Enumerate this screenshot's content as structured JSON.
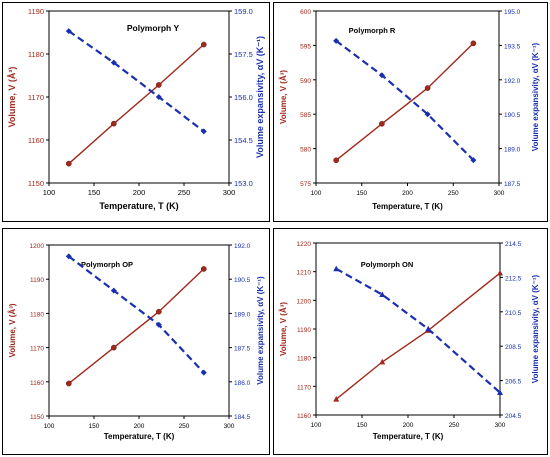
{
  "chart_data": [
    {
      "type": "line",
      "title": "Polymorph Y",
      "xlabel": "Temperature, T (K)",
      "ylabel": "Volume, V (Å³)",
      "y2label": "Volume expansivity, αV (K⁻¹)",
      "xlim": [
        100,
        300
      ],
      "ylim": [
        1150,
        1190
      ],
      "y2lim": [
        153.0,
        159.0
      ],
      "x_ticks": [
        "100",
        "150",
        "200",
        "250",
        "300"
      ],
      "y_ticks": [
        "1150",
        "1160",
        "1170",
        "1180",
        "1190"
      ],
      "y2_ticks": [
        "153.0",
        "154.5",
        "156.0",
        "157.5",
        "159.0"
      ],
      "series": [
        {
          "axis": "left",
          "color": "#a0281c",
          "style": "solid",
          "marker": "circle",
          "x": [
            122,
            172,
            222,
            272
          ],
          "y": [
            1154.5,
            1163.8,
            1172.8,
            1182.2
          ]
        },
        {
          "axis": "right",
          "color": "#1a2fb0",
          "style": "dashed",
          "marker": "diamond",
          "x": [
            122,
            172,
            222,
            272
          ],
          "y": [
            158.3,
            157.2,
            156.0,
            154.8
          ]
        }
      ]
    },
    {
      "type": "line",
      "title": "Polymorph R",
      "xlabel": "Temperature, T (K)",
      "ylabel": "Volume, V (Å³)",
      "y2label": "Volume expansivity, αV (K⁻¹)",
      "xlim": [
        100,
        300
      ],
      "ylim": [
        575,
        600
      ],
      "y2lim": [
        187.5,
        195.0
      ],
      "x_ticks": [
        "100",
        "150",
        "200",
        "250",
        "300"
      ],
      "y_ticks": [
        "575",
        "580",
        "585",
        "590",
        "595",
        "600"
      ],
      "y2_ticks": [
        "187.5",
        "189.0",
        "190.5",
        "192.0",
        "193.5",
        "195.0"
      ],
      "series": [
        {
          "axis": "left",
          "color": "#a0281c",
          "style": "solid",
          "marker": "circle",
          "x": [
            122,
            172,
            222,
            272
          ],
          "y": [
            578.3,
            583.6,
            588.8,
            595.3
          ]
        },
        {
          "axis": "right",
          "color": "#1a2fb0",
          "style": "dashed",
          "marker": "diamond",
          "x": [
            122,
            172,
            222,
            272
          ],
          "y": [
            193.7,
            192.2,
            190.5,
            188.5
          ]
        }
      ]
    },
    {
      "type": "line",
      "title": "Polymorph OP",
      "xlabel": "Temperature, T (K)",
      "ylabel": "Volume, V (Å³)",
      "y2label": "Volume expansivity, αV (K⁻¹)",
      "xlim": [
        100,
        300
      ],
      "ylim": [
        1150,
        1200
      ],
      "y2lim": [
        184.5,
        192.0
      ],
      "x_ticks": [
        "100",
        "150",
        "200",
        "250",
        "300"
      ],
      "y_ticks": [
        "1150",
        "1160",
        "1170",
        "1180",
        "1190",
        "1200"
      ],
      "y2_ticks": [
        "184.5",
        "186.0",
        "187.5",
        "189.0",
        "190.5",
        "192.0"
      ],
      "series": [
        {
          "axis": "left",
          "color": "#a0281c",
          "style": "solid",
          "marker": "circle",
          "x": [
            122,
            172,
            222,
            272
          ],
          "y": [
            1159.5,
            1170.0,
            1180.5,
            1193.0
          ]
        },
        {
          "axis": "right",
          "color": "#1a2fb0",
          "style": "dashed",
          "marker": "diamond",
          "x": [
            122,
            172,
            222,
            272
          ],
          "y": [
            191.5,
            190.0,
            188.5,
            186.4
          ]
        }
      ]
    },
    {
      "type": "line",
      "title": "Polymorph ON",
      "xlabel": "Temperature, T (K)",
      "ylabel": "Volume, V (Å³)",
      "y2label": "Volume expansivity, αV (K⁻¹)",
      "xlim": [
        100,
        300
      ],
      "ylim": [
        1160,
        1220
      ],
      "y2lim": [
        204.5,
        214.5
      ],
      "x_ticks": [
        "100",
        "150",
        "200",
        "250",
        "300"
      ],
      "y_ticks": [
        "1160",
        "1170",
        "1180",
        "1190",
        "1200",
        "1210",
        "1220"
      ],
      "y2_ticks": [
        "204.5",
        "206.5",
        "208.5",
        "210.5",
        "212.5",
        "214.5"
      ],
      "series": [
        {
          "axis": "left",
          "color": "#a0281c",
          "style": "solid",
          "marker": "triangle",
          "x": [
            122,
            172,
            222,
            300
          ],
          "y": [
            1165.5,
            1178.5,
            1189.5,
            1209.5
          ]
        },
        {
          "axis": "right",
          "color": "#1a2fb0",
          "style": "dashed",
          "marker": "triangle",
          "x": [
            122,
            172,
            222,
            300
          ],
          "y": [
            213.0,
            211.5,
            209.5,
            205.8
          ]
        }
      ]
    }
  ]
}
